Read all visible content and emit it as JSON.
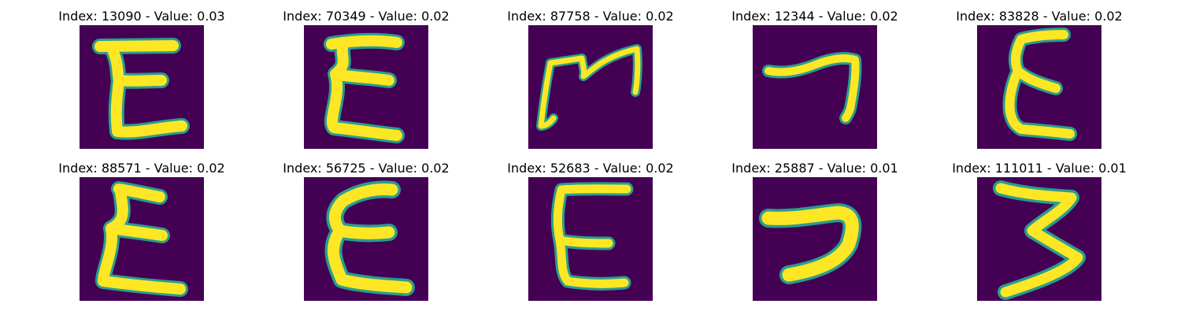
{
  "colors": {
    "background": "#440154",
    "stroke_core": "#fde725",
    "stroke_edge": "#2a9d8f"
  },
  "panels": [
    {
      "title": "Index: 13090 - Value: 0.03",
      "image": "handwritten-E-glyph"
    },
    {
      "title": "Index: 70349 - Value: 0.02",
      "image": "handwritten-E-glyph"
    },
    {
      "title": "Index: 87758 - Value: 0.02",
      "image": "handwritten-rotated-glyph"
    },
    {
      "title": "Index: 12344 - Value: 0.02",
      "image": "handwritten-hook-glyph"
    },
    {
      "title": "Index: 83828 - Value: 0.02",
      "image": "handwritten-E-glyph"
    },
    {
      "title": "Index: 88571 - Value: 0.02",
      "image": "handwritten-E-glyph"
    },
    {
      "title": "Index: 56725 - Value: 0.02",
      "image": "handwritten-E-glyph"
    },
    {
      "title": "Index: 52683 - Value: 0.02",
      "image": "handwritten-E-glyph"
    },
    {
      "title": "Index: 25887 - Value: 0.01",
      "image": "handwritten-hook-glyph"
    },
    {
      "title": "Index: 111011 - Value: 0.01",
      "image": "handwritten-3-glyph"
    }
  ]
}
